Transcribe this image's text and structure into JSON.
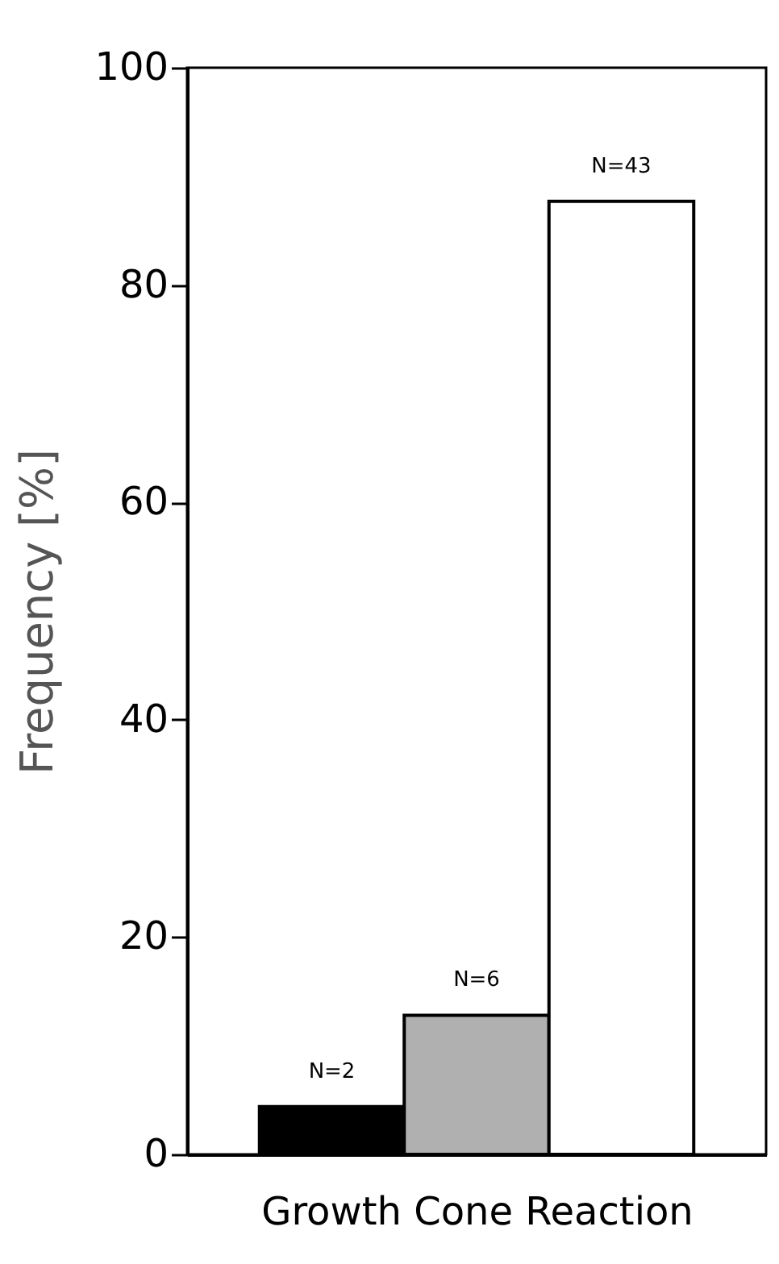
{
  "chart_data": {
    "type": "bar",
    "xlabel": "Growth Cone Reaction",
    "ylabel": "Frequency [%]",
    "categories": [
      null,
      null,
      null
    ],
    "values": [
      4.4,
      12.8,
      87.7
    ],
    "colors": [
      "#000000",
      "#b0b0b0",
      "#ffffff"
    ],
    "annotations": [
      "N=2",
      "N=6",
      "N=43"
    ],
    "ylim": [
      0,
      100
    ],
    "yticks": [
      0,
      20,
      40,
      60,
      80,
      100
    ],
    "grid": false
  }
}
